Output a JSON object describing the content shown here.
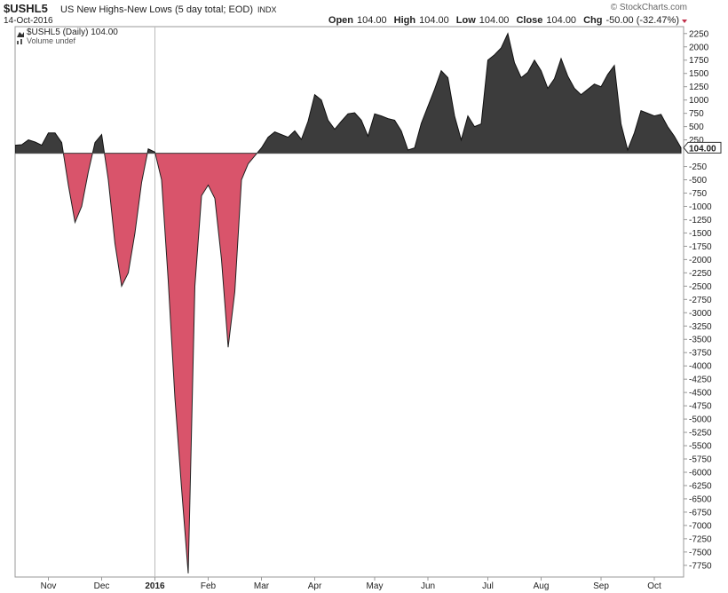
{
  "header": {
    "symbol": "$USHL5",
    "name": "US New Highs-New Lows (5 day total; EOD)",
    "exchange": "INDX",
    "date": "14-Oct-2016",
    "copyright": "© StockCharts.com",
    "quote": [
      {
        "label": "Open",
        "value": "104.00"
      },
      {
        "label": "High",
        "value": "104.00"
      },
      {
        "label": "Low",
        "value": "104.00"
      },
      {
        "label": "Close",
        "value": "104.00"
      },
      {
        "label": "Chg",
        "value": "-50.00 (-32.47%)"
      }
    ]
  },
  "chart_data": {
    "type": "area",
    "legend": [
      "$USHL5 (Daily) 104.00",
      "Volume undef"
    ],
    "categories": [
      null,
      null,
      null,
      null,
      null,
      "Nov",
      null,
      null,
      null,
      null,
      null,
      null,
      null,
      "Dec",
      null,
      null,
      null,
      null,
      null,
      null,
      null,
      "2016",
      null,
      null,
      null,
      null,
      null,
      null,
      null,
      "Feb",
      null,
      null,
      null,
      null,
      null,
      null,
      null,
      "Mar",
      null,
      null,
      null,
      null,
      null,
      null,
      null,
      "Apr",
      null,
      null,
      null,
      null,
      null,
      null,
      null,
      null,
      "May",
      null,
      null,
      null,
      null,
      null,
      null,
      null,
      "Jun",
      null,
      null,
      null,
      null,
      null,
      null,
      null,
      null,
      "Jul",
      null,
      null,
      null,
      null,
      null,
      null,
      null,
      "Aug",
      null,
      null,
      null,
      null,
      null,
      null,
      null,
      null,
      "Sep",
      null,
      null,
      null,
      null,
      null,
      null,
      null,
      "Oct",
      null,
      null,
      null,
      null
    ],
    "values": [
      150,
      160,
      250,
      210,
      150,
      380,
      380,
      200,
      -600,
      -1300,
      -1000,
      -350,
      200,
      350,
      -500,
      -1700,
      -2500,
      -2250,
      -1500,
      -550,
      80,
      20,
      -500,
      -2400,
      -4600,
      -6300,
      -7900,
      -2500,
      -800,
      -600,
      -850,
      -2000,
      -3650,
      -2600,
      -500,
      -200,
      -50,
      100,
      300,
      400,
      350,
      300,
      420,
      260,
      600,
      1100,
      1000,
      620,
      450,
      600,
      740,
      760,
      620,
      320,
      740,
      700,
      650,
      620,
      420,
      60,
      100,
      560,
      880,
      1200,
      1550,
      1420,
      700,
      250,
      700,
      500,
      550,
      1750,
      1850,
      1980,
      2250,
      1700,
      1420,
      1520,
      1750,
      1550,
      1220,
      1400,
      1780,
      1450,
      1220,
      1100,
      1200,
      1300,
      1250,
      1480,
      1650,
      550,
      60,
      380,
      800,
      750,
      700,
      730,
      500,
      320,
      104
    ],
    "last_value_label": "104.00",
    "positive_color": "#3c3c3c",
    "negative_color": "#d9546b",
    "ylim": [
      -7970,
      2380
    ],
    "yticks": [
      2250,
      2000,
      1750,
      1500,
      1250,
      1000,
      750,
      500,
      250,
      -250,
      -500,
      -750,
      -1000,
      -1250,
      -1500,
      -1750,
      -2000,
      -2250,
      -2500,
      -2750,
      -3000,
      -3250,
      -3500,
      -3750,
      -4000,
      -4250,
      -4500,
      -4750,
      -5000,
      -5250,
      -5500,
      -5750,
      -6000,
      -6250,
      -6500,
      -6750,
      -7000,
      -7250,
      -7500,
      -7750
    ]
  }
}
